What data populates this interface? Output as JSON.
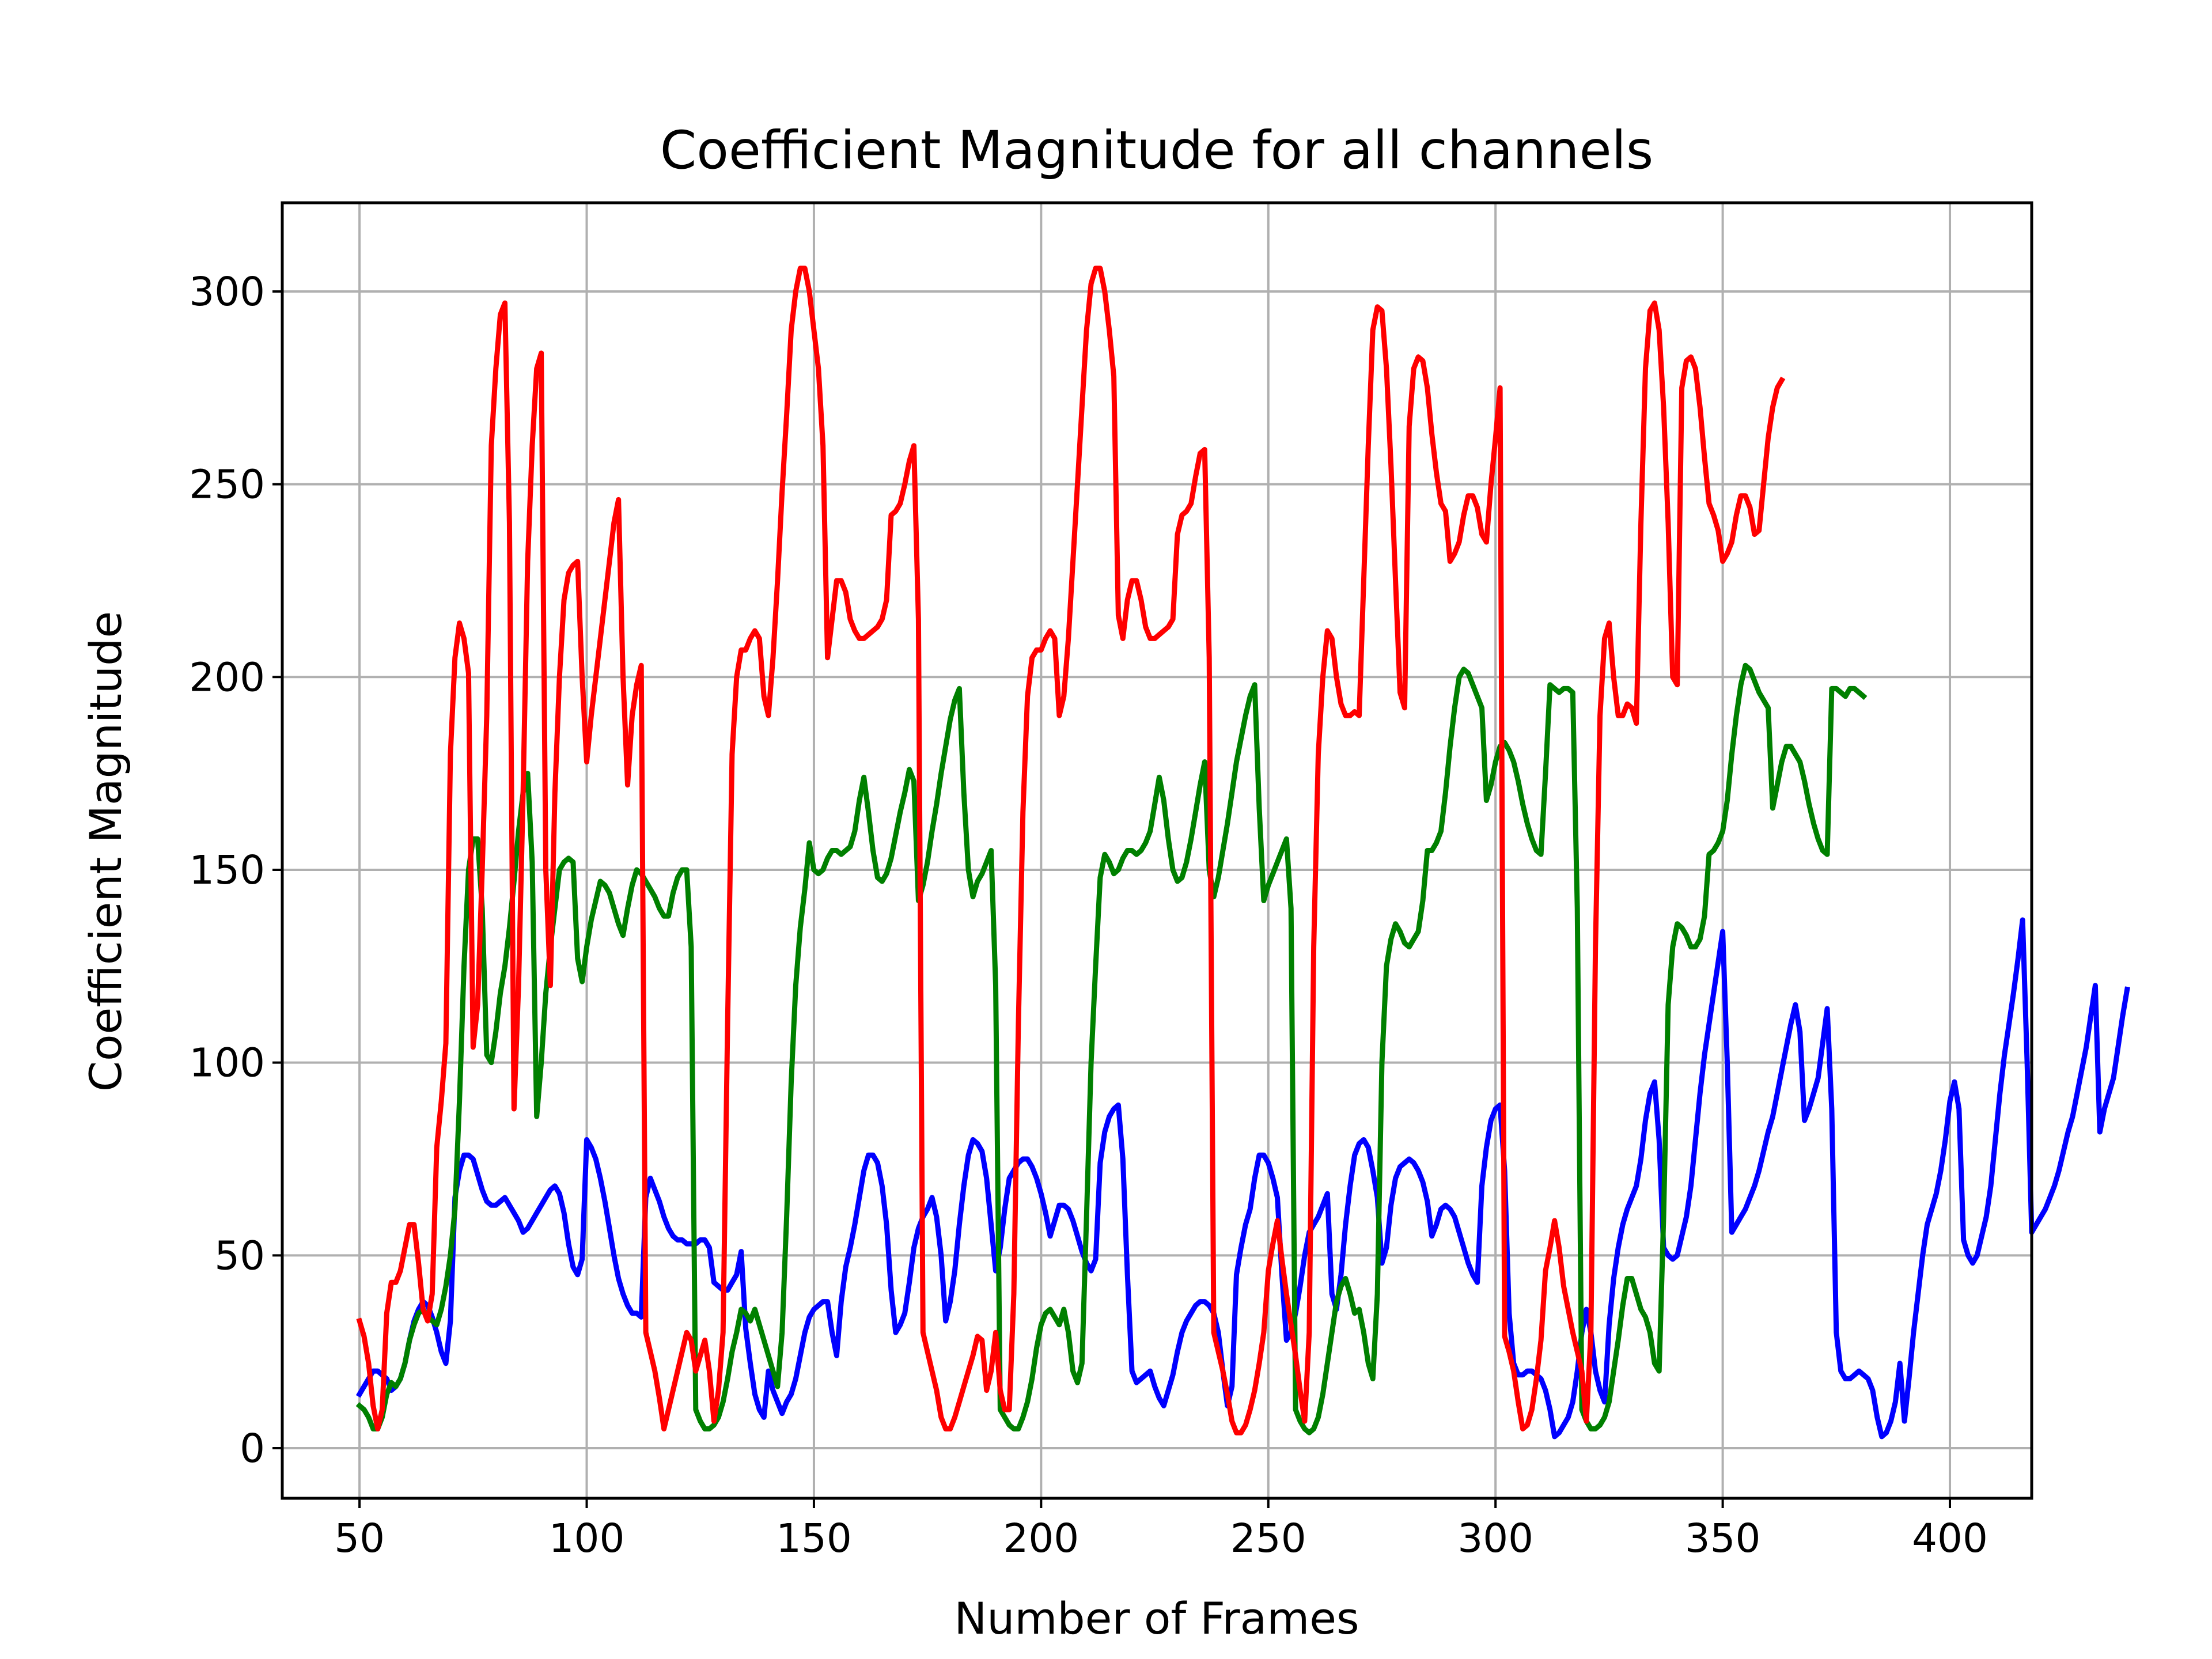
{
  "chart_data": {
    "type": "line",
    "title": "Coefficient Magnitude for all channels",
    "xlabel": "Number of Frames",
    "ylabel": "Coefficient Magnitude",
    "xlim": [
      33,
      418
    ],
    "ylim": [
      -13,
      323
    ],
    "xticks": [
      50,
      100,
      150,
      200,
      250,
      300,
      350,
      400
    ],
    "yticks": [
      0,
      50,
      100,
      150,
      200,
      250,
      300
    ],
    "grid": true,
    "legend": "none",
    "series": [
      {
        "color": "#0000ff",
        "points": [
          [
            50,
            14
          ],
          [
            52,
            18
          ],
          [
            54,
            20
          ],
          [
            56,
            19
          ],
          [
            58,
            16
          ],
          [
            60,
            20
          ],
          [
            62,
            33
          ],
          [
            64,
            38
          ],
          [
            66,
            36
          ],
          [
            68,
            30
          ],
          [
            70,
            24
          ],
          [
            72,
            22
          ],
          [
            74,
            33
          ],
          [
            76,
            70
          ],
          [
            78,
            76
          ],
          [
            80,
            75
          ],
          [
            82,
            68
          ],
          [
            84,
            63
          ],
          [
            86,
            64
          ],
          [
            88,
            62
          ],
          [
            90,
            58
          ],
          [
            92,
            56
          ],
          [
            94,
            60
          ],
          [
            96,
            64
          ],
          [
            98,
            67
          ],
          [
            100,
            68
          ],
          [
            102,
            65
          ],
          [
            104,
            53
          ],
          [
            106,
            45
          ],
          [
            108,
            49
          ],
          [
            110,
            80
          ],
          [
            112,
            76
          ],
          [
            114,
            68
          ],
          [
            116,
            58
          ],
          [
            118,
            48
          ],
          [
            120,
            40
          ],
          [
            122,
            36
          ],
          [
            124,
            35
          ],
          [
            126,
            34
          ],
          [
            128,
            68
          ],
          [
            130,
            70
          ],
          [
            132,
            65
          ],
          [
            134,
            60
          ],
          [
            136,
            56
          ],
          [
            138,
            54
          ],
          [
            140,
            53
          ],
          [
            142,
            53
          ],
          [
            144,
            53
          ],
          [
            146,
            54
          ],
          [
            148,
            51
          ],
          [
            150,
            42
          ],
          [
            152,
            41
          ],
          [
            154,
            43
          ],
          [
            156,
            51
          ],
          [
            158,
            45
          ],
          [
            119,
            22
          ],
          [
            121,
            10
          ],
          [
            123,
            8
          ],
          [
            125,
            20
          ],
          [
            127,
            12
          ],
          [
            129,
            18
          ],
          [
            131,
            26
          ],
          [
            133,
            36
          ],
          [
            135,
            38
          ],
          [
            136,
            38
          ],
          [
            137,
            30
          ],
          [
            138,
            47
          ],
          [
            140,
            58
          ],
          [
            142,
            76
          ],
          [
            144,
            74
          ],
          [
            145,
            60
          ],
          [
            146,
            40
          ],
          [
            147,
            30
          ],
          [
            148,
            32
          ],
          [
            150,
            52
          ],
          [
            152,
            60
          ],
          [
            154,
            65
          ],
          [
            155,
            55
          ],
          [
            156,
            33
          ],
          [
            157,
            38
          ],
          [
            159,
            62
          ],
          [
            161,
            76
          ],
          [
            163,
            80
          ],
          [
            165,
            78
          ],
          [
            167,
            70
          ],
          [
            168,
            46
          ],
          [
            169,
            55
          ],
          [
            171,
            68
          ],
          [
            173,
            74
          ],
          [
            175,
            75
          ],
          [
            177,
            72
          ],
          [
            179,
            64
          ],
          [
            180,
            55
          ],
          [
            182,
            63
          ],
          [
            184,
            60
          ],
          [
            186,
            50
          ],
          [
            188,
            46
          ],
          [
            190,
            48
          ],
          [
            191,
            74
          ],
          [
            193,
            86
          ],
          [
            194,
            88
          ],
          [
            195,
            75
          ],
          [
            196,
            30
          ],
          [
            197,
            18
          ],
          [
            198,
            19
          ],
          [
            200,
            20
          ],
          [
            202,
            14
          ],
          [
            204,
            16
          ],
          [
            206,
            20
          ],
          [
            208,
            32
          ],
          [
            210,
            36
          ],
          [
            212,
            38
          ],
          [
            214,
            36
          ],
          [
            215,
            20
          ],
          [
            216,
            10
          ],
          [
            217,
            16
          ],
          [
            218,
            45
          ],
          [
            220,
            60
          ],
          [
            222,
            76
          ],
          [
            224,
            74
          ],
          [
            225,
            65
          ],
          [
            226,
            30
          ],
          [
            228,
            35
          ],
          [
            230,
            55
          ],
          [
            232,
            60
          ],
          [
            234,
            66
          ],
          [
            235,
            40
          ],
          [
            236,
            36
          ],
          [
            238,
            62
          ],
          [
            240,
            78
          ],
          [
            242,
            79
          ],
          [
            244,
            72
          ],
          [
            245,
            48
          ],
          [
            246,
            52
          ],
          [
            248,
            70
          ],
          [
            250,
            74
          ],
          [
            252,
            75
          ],
          [
            254,
            72
          ],
          [
            256,
            64
          ],
          [
            257,
            55
          ],
          [
            259,
            62
          ],
          [
            261,
            63
          ],
          [
            263,
            58
          ],
          [
            265,
            50
          ],
          [
            267,
            45
          ],
          [
            268,
            43
          ],
          [
            269,
            70
          ],
          [
            271,
            85
          ],
          [
            272,
            88
          ]
        ],
        "note_order": "sorted"
      }
    ]
  }
}
